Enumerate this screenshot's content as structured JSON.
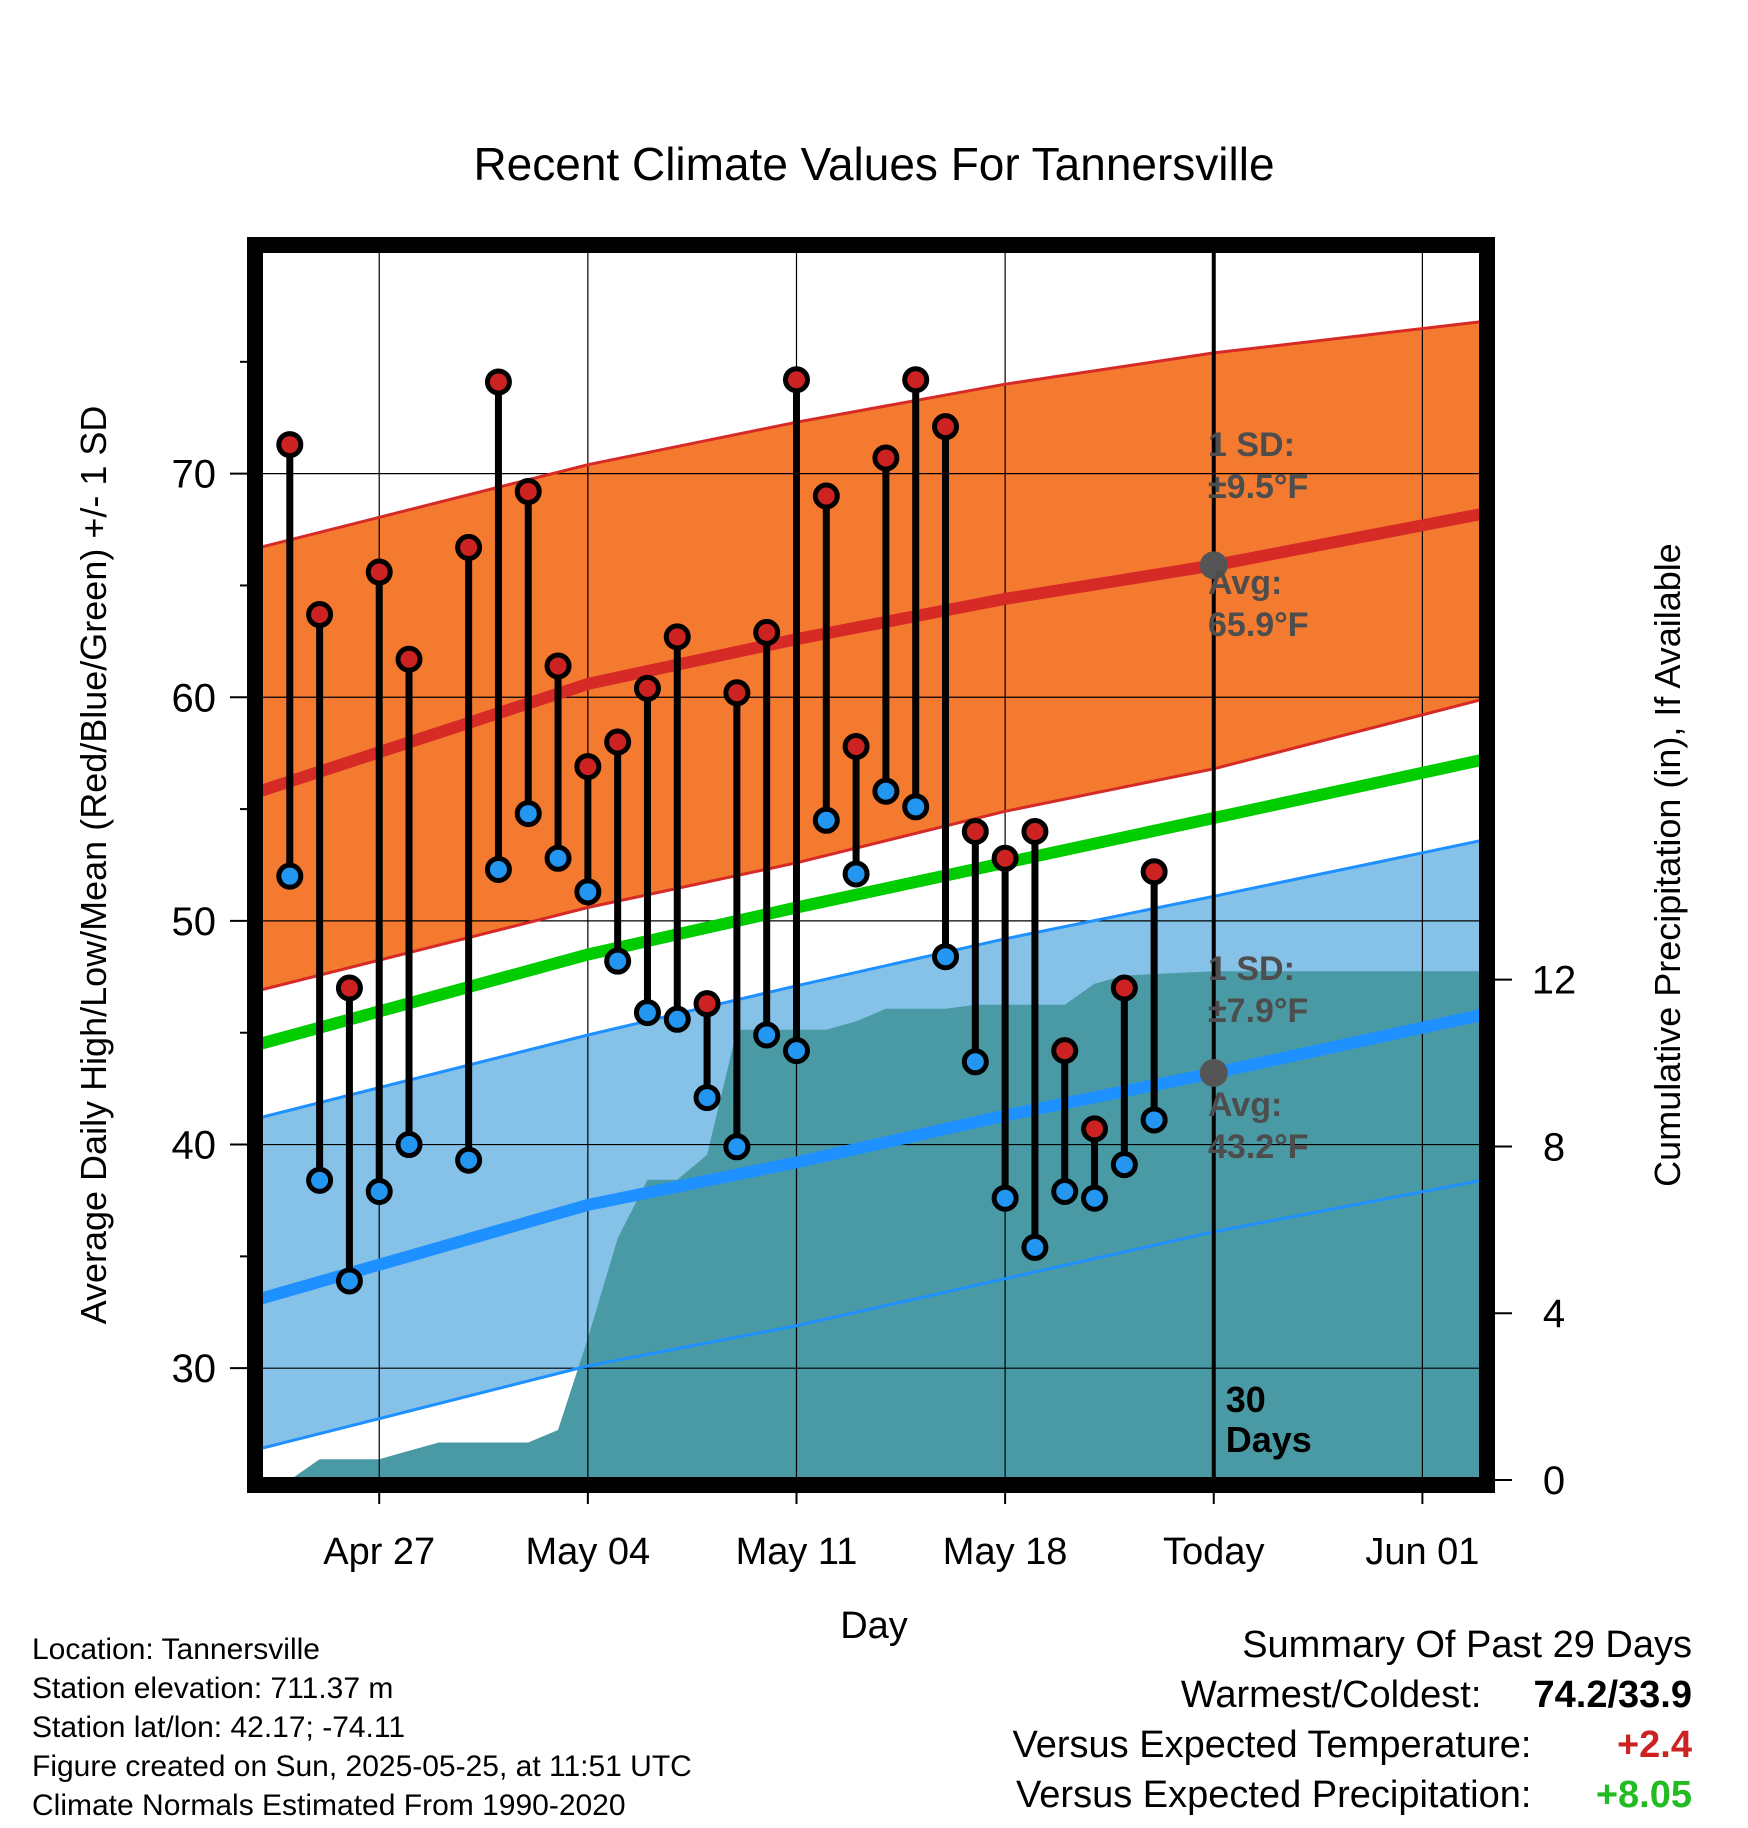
{
  "chart_data": {
    "type": "line",
    "title": "Recent Climate Values For Tannersville",
    "xlabel": "Day",
    "ylabel": "Average Daily High/Low/Mean (Red/Blue/Green) +/- 1 SD",
    "y2label": "Cumulative Precipitation (in), If Available",
    "xlim": [
      "2025-04-23",
      "2025-06-03"
    ],
    "ylim": [
      25,
      80
    ],
    "y2lim": [
      0,
      29.5
    ],
    "grid": true,
    "x_ticks": [
      {
        "date": "2025-04-27",
        "label": "Apr 27"
      },
      {
        "date": "2025-05-04",
        "label": "May 04"
      },
      {
        "date": "2025-05-11",
        "label": "May 11"
      },
      {
        "date": "2025-05-18",
        "label": "May 18"
      },
      {
        "date": "2025-05-25",
        "label": "Today"
      },
      {
        "date": "2025-06-01",
        "label": "Jun 01"
      }
    ],
    "y_ticks": [
      30,
      40,
      50,
      60,
      70
    ],
    "y2_ticks": [
      0,
      4,
      8,
      12
    ],
    "normals": {
      "x": [
        "2025-04-23",
        "2025-05-04",
        "2025-05-11",
        "2025-05-18",
        "2025-05-25",
        "2025-06-03"
      ],
      "high_mean": [
        55.8,
        60.6,
        62.6,
        64.4,
        65.9,
        68.2
      ],
      "high_plus_sd": [
        66.7,
        70.4,
        72.3,
        74.0,
        75.4,
        76.8
      ],
      "high_minus_sd": [
        46.9,
        50.6,
        52.6,
        54.9,
        56.8,
        59.9
      ],
      "low_mean": [
        33.1,
        37.3,
        39.2,
        41.3,
        43.2,
        45.8
      ],
      "low_plus_sd": [
        41.2,
        44.9,
        47.1,
        49.2,
        51.1,
        53.6
      ],
      "low_minus_sd": [
        26.4,
        30.1,
        31.9,
        34.0,
        36.1,
        38.4
      ],
      "mean_mean": [
        44.5,
        48.5,
        50.6,
        52.6,
        54.6,
        57.2
      ]
    },
    "series": [
      {
        "name": "High",
        "x": [
          "2025-04-24",
          "2025-04-25",
          "2025-04-26",
          "2025-04-27",
          "2025-04-28",
          "2025-04-30",
          "2025-05-01",
          "2025-05-02",
          "2025-05-03",
          "2025-05-04",
          "2025-05-05",
          "2025-05-06",
          "2025-05-07",
          "2025-05-08",
          "2025-05-09",
          "2025-05-10",
          "2025-05-11",
          "2025-05-12",
          "2025-05-13",
          "2025-05-14",
          "2025-05-15",
          "2025-05-16",
          "2025-05-17",
          "2025-05-18",
          "2025-05-19",
          "2025-05-20",
          "2025-05-21",
          "2025-05-22",
          "2025-05-23",
          "2025-05-24"
        ],
        "values": [
          71.3,
          63.7,
          47.0,
          65.6,
          61.7,
          66.7,
          74.1,
          69.2,
          61.4,
          56.9,
          58.0,
          60.4,
          62.7,
          46.3,
          60.2,
          62.9,
          74.2,
          69.0,
          57.8,
          70.7,
          74.2,
          72.1,
          54.0,
          52.8,
          54.0,
          44.2,
          40.7,
          47.0,
          52.2,
          null
        ]
      },
      {
        "name": "Low",
        "x": [
          "2025-04-24",
          "2025-04-25",
          "2025-04-26",
          "2025-04-27",
          "2025-04-28",
          "2025-04-30",
          "2025-05-01",
          "2025-05-02",
          "2025-05-03",
          "2025-05-04",
          "2025-05-05",
          "2025-05-06",
          "2025-05-07",
          "2025-05-08",
          "2025-05-09",
          "2025-05-10",
          "2025-05-11",
          "2025-05-12",
          "2025-05-13",
          "2025-05-14",
          "2025-05-15",
          "2025-05-16",
          "2025-05-17",
          "2025-05-18",
          "2025-05-19",
          "2025-05-20",
          "2025-05-21",
          "2025-05-22",
          "2025-05-23",
          "2025-05-24"
        ],
        "values": [
          52.0,
          38.4,
          33.9,
          37.9,
          40.0,
          39.3,
          52.3,
          54.8,
          52.8,
          51.3,
          48.2,
          45.9,
          45.6,
          42.1,
          39.9,
          44.9,
          44.2,
          54.5,
          52.1,
          55.8,
          55.1,
          48.4,
          43.7,
          37.6,
          35.4,
          37.9,
          37.6,
          39.1,
          41.1,
          null
        ]
      }
    ],
    "precip": {
      "x": [
        "2025-04-23",
        "2025-04-24",
        "2025-04-25",
        "2025-04-27",
        "2025-04-28",
        "2025-04-29",
        "2025-05-02",
        "2025-05-03",
        "2025-05-04",
        "2025-05-05",
        "2025-05-06",
        "2025-05-07",
        "2025-05-08",
        "2025-05-09",
        "2025-05-12",
        "2025-05-13",
        "2025-05-14",
        "2025-05-15",
        "2025-05-16",
        "2025-05-17",
        "2025-05-20",
        "2025-05-21",
        "2025-05-22",
        "2025-05-25",
        "2025-06-03"
      ],
      "values": [
        0,
        0,
        0.5,
        0.5,
        0.7,
        0.9,
        0.9,
        1.2,
        3.4,
        5.8,
        7.2,
        7.2,
        7.8,
        10.8,
        10.8,
        11.0,
        11.3,
        11.3,
        11.3,
        11.4,
        11.4,
        11.9,
        12.1,
        12.2,
        12.2
      ]
    },
    "annotations": {
      "high_sd_label": "1 SD:",
      "high_sd_value": "±9.5°F",
      "high_avg_label": "Avg:",
      "high_avg_value": "65.9°F",
      "low_sd_label": "1 SD:",
      "low_sd_value": "±7.9°F",
      "low_avg_label": "Avg:",
      "low_avg_value": "43.2°F",
      "days_label_line1": "30",
      "days_label_line2": "Days"
    },
    "colors": {
      "high_band": "#f47a30",
      "high_line": "#d62a27",
      "low_band": "#86c2e8",
      "low_line": "#1e90ff",
      "mean_line": "#00cc00",
      "precip": "#4a9aa5",
      "high_marker": "#cc2222",
      "low_marker": "#2296f0",
      "annotation": "#4d4d4d"
    }
  },
  "meta": {
    "location": "Location: Tannersville",
    "elevation": "Station elevation: 711.37 m",
    "latlon": "Station lat/lon: 42.17; -74.11",
    "created": "Figure created on Sun, 2025-05-25, at 11:51 UTC",
    "normals": "Climate Normals Estimated From 1990-2020"
  },
  "summary": {
    "title": "Summary Of Past 29 Days",
    "warmest_label": "Warmest/Coldest:",
    "warmest_value": "74.2/33.9",
    "temp_label": "Versus Expected Temperature:",
    "temp_value": "+2.4",
    "temp_color": "#cc2222",
    "precip_label": "Versus Expected Precipitation:",
    "precip_value": "+8.05",
    "precip_color": "#22bb22"
  }
}
